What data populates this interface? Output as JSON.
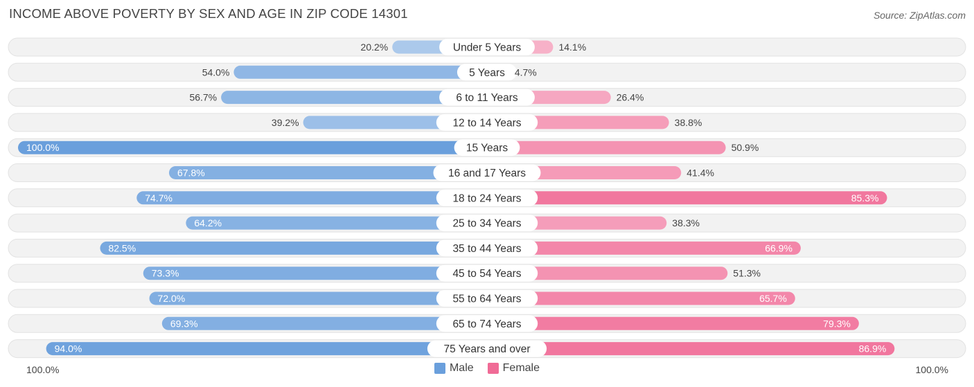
{
  "header": {
    "title": "INCOME ABOVE POVERTY BY SEX AND AGE IN ZIP CODE 14301",
    "source": "Source: ZipAtlas.com"
  },
  "axis": {
    "left_label": "100.0%",
    "right_label": "100.0%"
  },
  "legend": {
    "male_label": "Male",
    "female_label": "Female",
    "male_color": "#6a9fdc",
    "female_color": "#f06b96"
  },
  "chart_data": {
    "type": "bar",
    "orientation": "horizontal-diverging",
    "title": "INCOME ABOVE POVERTY BY SEX AND AGE IN ZIP CODE 14301",
    "xlim": [
      0,
      100
    ],
    "unit": "%",
    "categories": [
      "Under 5 Years",
      "5 Years",
      "6 to 11 Years",
      "12 to 14 Years",
      "15 Years",
      "16 and 17 Years",
      "18 to 24 Years",
      "25 to 34 Years",
      "35 to 44 Years",
      "45 to 54 Years",
      "55 to 64 Years",
      "65 to 74 Years",
      "75 Years and over"
    ],
    "series": [
      {
        "name": "Male",
        "color": "#6a9fdc",
        "values": [
          20.2,
          54.0,
          56.7,
          39.2,
          100.0,
          67.8,
          74.7,
          64.2,
          82.5,
          73.3,
          72.0,
          69.3,
          94.0
        ],
        "labels": [
          "20.2%",
          "54.0%",
          "56.7%",
          "39.2%",
          "100.0%",
          "67.8%",
          "74.7%",
          "64.2%",
          "82.5%",
          "73.3%",
          "72.0%",
          "69.3%",
          "94.0%"
        ]
      },
      {
        "name": "Female",
        "color": "#f06b96",
        "values": [
          14.1,
          4.7,
          26.4,
          38.8,
          50.9,
          41.4,
          85.3,
          38.3,
          66.9,
          51.3,
          65.7,
          79.3,
          86.9
        ],
        "labels": [
          "14.1%",
          "4.7%",
          "26.4%",
          "38.8%",
          "50.9%",
          "41.4%",
          "85.3%",
          "38.3%",
          "66.9%",
          "51.3%",
          "65.7%",
          "79.3%",
          "86.9%"
        ]
      }
    ],
    "legend": "bottom-center",
    "grid": false
  }
}
